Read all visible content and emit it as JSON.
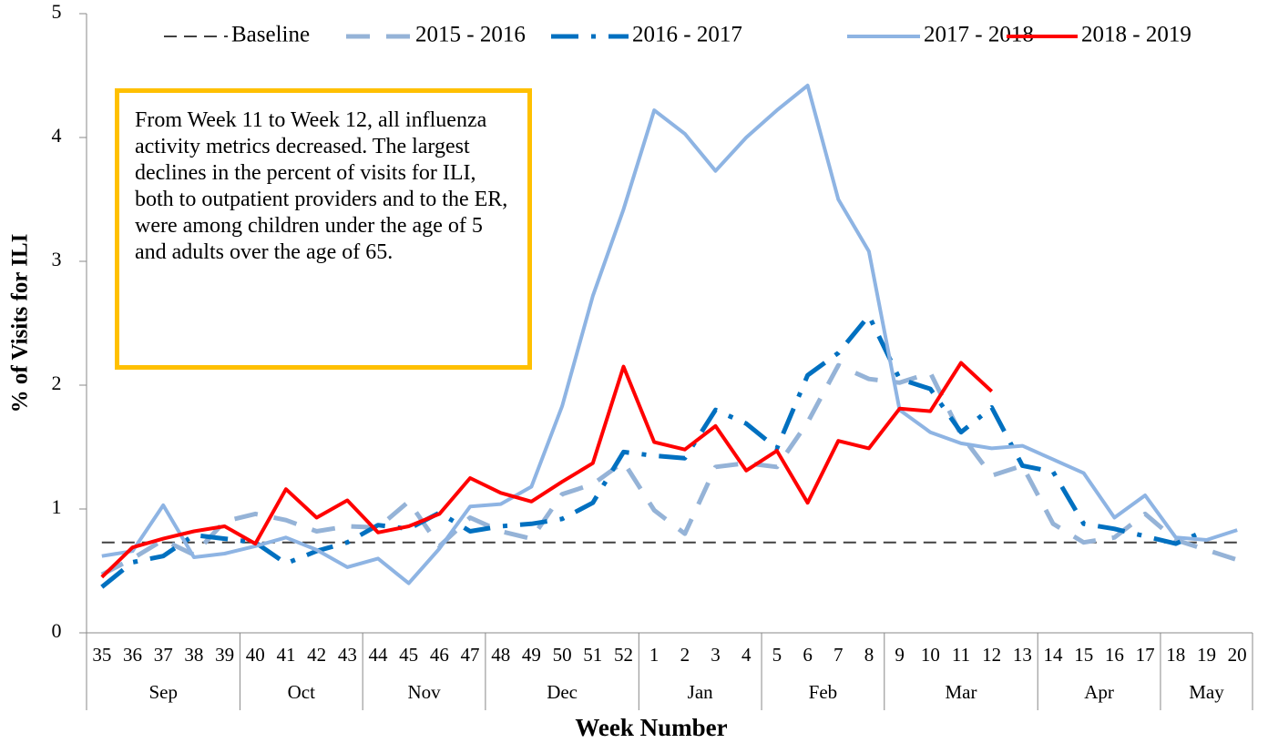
{
  "chart_data": {
    "type": "line",
    "y_label": "% of Visits for ILI",
    "x_label": "Week Number",
    "annotation": "From Week 11 to Week 12, all influenza activity metrics decreased. The largest declines in the percent of visits for ILI, both to outpatient providers and to the ER, were among children under the age of 5 and adults over the age of 65.",
    "categories": [
      "35",
      "36",
      "37",
      "38",
      "39",
      "40",
      "41",
      "42",
      "43",
      "44",
      "45",
      "46",
      "47",
      "48",
      "49",
      "50",
      "51",
      "52",
      "1",
      "2",
      "3",
      "4",
      "5",
      "6",
      "7",
      "8",
      "9",
      "10",
      "11",
      "12",
      "13",
      "14",
      "15",
      "16",
      "17",
      "18",
      "19",
      "20"
    ],
    "months": [
      {
        "name": "Sep",
        "first": "35",
        "last": "39"
      },
      {
        "name": "Oct",
        "first": "40",
        "last": "43"
      },
      {
        "name": "Nov",
        "first": "44",
        "last": "47"
      },
      {
        "name": "Dec",
        "first": "48",
        "last": "52"
      },
      {
        "name": "Jan",
        "first": "1",
        "last": "4"
      },
      {
        "name": "Feb",
        "first": "5",
        "last": "8"
      },
      {
        "name": "Mar",
        "first": "9",
        "last": "13"
      },
      {
        "name": "Apr",
        "first": "14",
        "last": "17"
      },
      {
        "name": "May",
        "first": "18",
        "last": "20"
      }
    ],
    "ylim": [
      0,
      5
    ],
    "yticks": [
      0,
      1,
      2,
      3,
      4,
      5
    ],
    "series": [
      {
        "name": "Baseline",
        "color": "#404040",
        "style": "dashed",
        "values": [
          0.73,
          0.73,
          0.73,
          0.73,
          0.73,
          0.73,
          0.73,
          0.73,
          0.73,
          0.73,
          0.73,
          0.73,
          0.73,
          0.73,
          0.73,
          0.73,
          0.73,
          0.73,
          0.73,
          0.73,
          0.73,
          0.73,
          0.73,
          0.73,
          0.73,
          0.73,
          0.73,
          0.73,
          0.73,
          0.73,
          0.73,
          0.73,
          0.73,
          0.73,
          0.73,
          0.73,
          0.73,
          0.73
        ]
      },
      {
        "name": "2015 - 2016",
        "color": "#95b3d7",
        "style": "long-dash",
        "values": [
          0.47,
          0.6,
          0.75,
          0.63,
          0.9,
          0.96,
          0.91,
          0.82,
          0.86,
          0.85,
          1.06,
          0.7,
          0.93,
          0.82,
          0.76,
          1.12,
          1.2,
          1.38,
          0.99,
          0.8,
          1.34,
          1.37,
          1.34,
          1.7,
          2.16,
          2.05,
          2.02,
          2.1,
          1.6,
          1.27,
          1.35,
          0.88,
          0.73,
          0.77,
          0.96,
          0.75,
          0.67,
          0.59
        ]
      },
      {
        "name": "2016 - 2017",
        "color": "#0070c0",
        "style": "dash-dot",
        "values": [
          0.37,
          0.57,
          0.62,
          0.79,
          0.76,
          0.73,
          0.56,
          0.66,
          0.73,
          0.87,
          0.84,
          0.97,
          0.82,
          0.86,
          0.88,
          0.92,
          1.05,
          1.46,
          1.43,
          1.41,
          1.8,
          1.69,
          1.49,
          2.08,
          2.26,
          2.56,
          2.05,
          1.97,
          1.62,
          1.82,
          1.35,
          1.3,
          0.88,
          0.84,
          0.78,
          0.72,
          0.83,
          null
        ]
      },
      {
        "name": "2017 - 2018",
        "color": "#8eb4e3",
        "style": "solid",
        "values": [
          0.62,
          0.66,
          1.03,
          0.61,
          0.64,
          0.7,
          0.77,
          0.67,
          0.53,
          0.6,
          0.4,
          0.68,
          1.02,
          1.04,
          1.18,
          1.83,
          2.72,
          3.42,
          4.22,
          4.03,
          3.73,
          4.0,
          4.22,
          4.42,
          3.5,
          3.08,
          1.8,
          1.62,
          1.53,
          1.49,
          1.51,
          1.4,
          1.29,
          0.93,
          1.11,
          0.77,
          0.75,
          0.83
        ]
      },
      {
        "name": "2018 - 2019",
        "color": "#ff0000",
        "style": "solid",
        "values": [
          0.45,
          0.69,
          0.76,
          0.82,
          0.86,
          0.72,
          1.16,
          0.93,
          1.07,
          0.81,
          0.86,
          0.96,
          1.25,
          1.13,
          1.06,
          1.22,
          1.37,
          2.15,
          1.54,
          1.48,
          1.67,
          1.31,
          1.47,
          1.05,
          1.55,
          1.49,
          1.81,
          1.79,
          2.18,
          1.95,
          null,
          null,
          null,
          null,
          null,
          null,
          null,
          null
        ]
      }
    ],
    "legend": "top"
  }
}
